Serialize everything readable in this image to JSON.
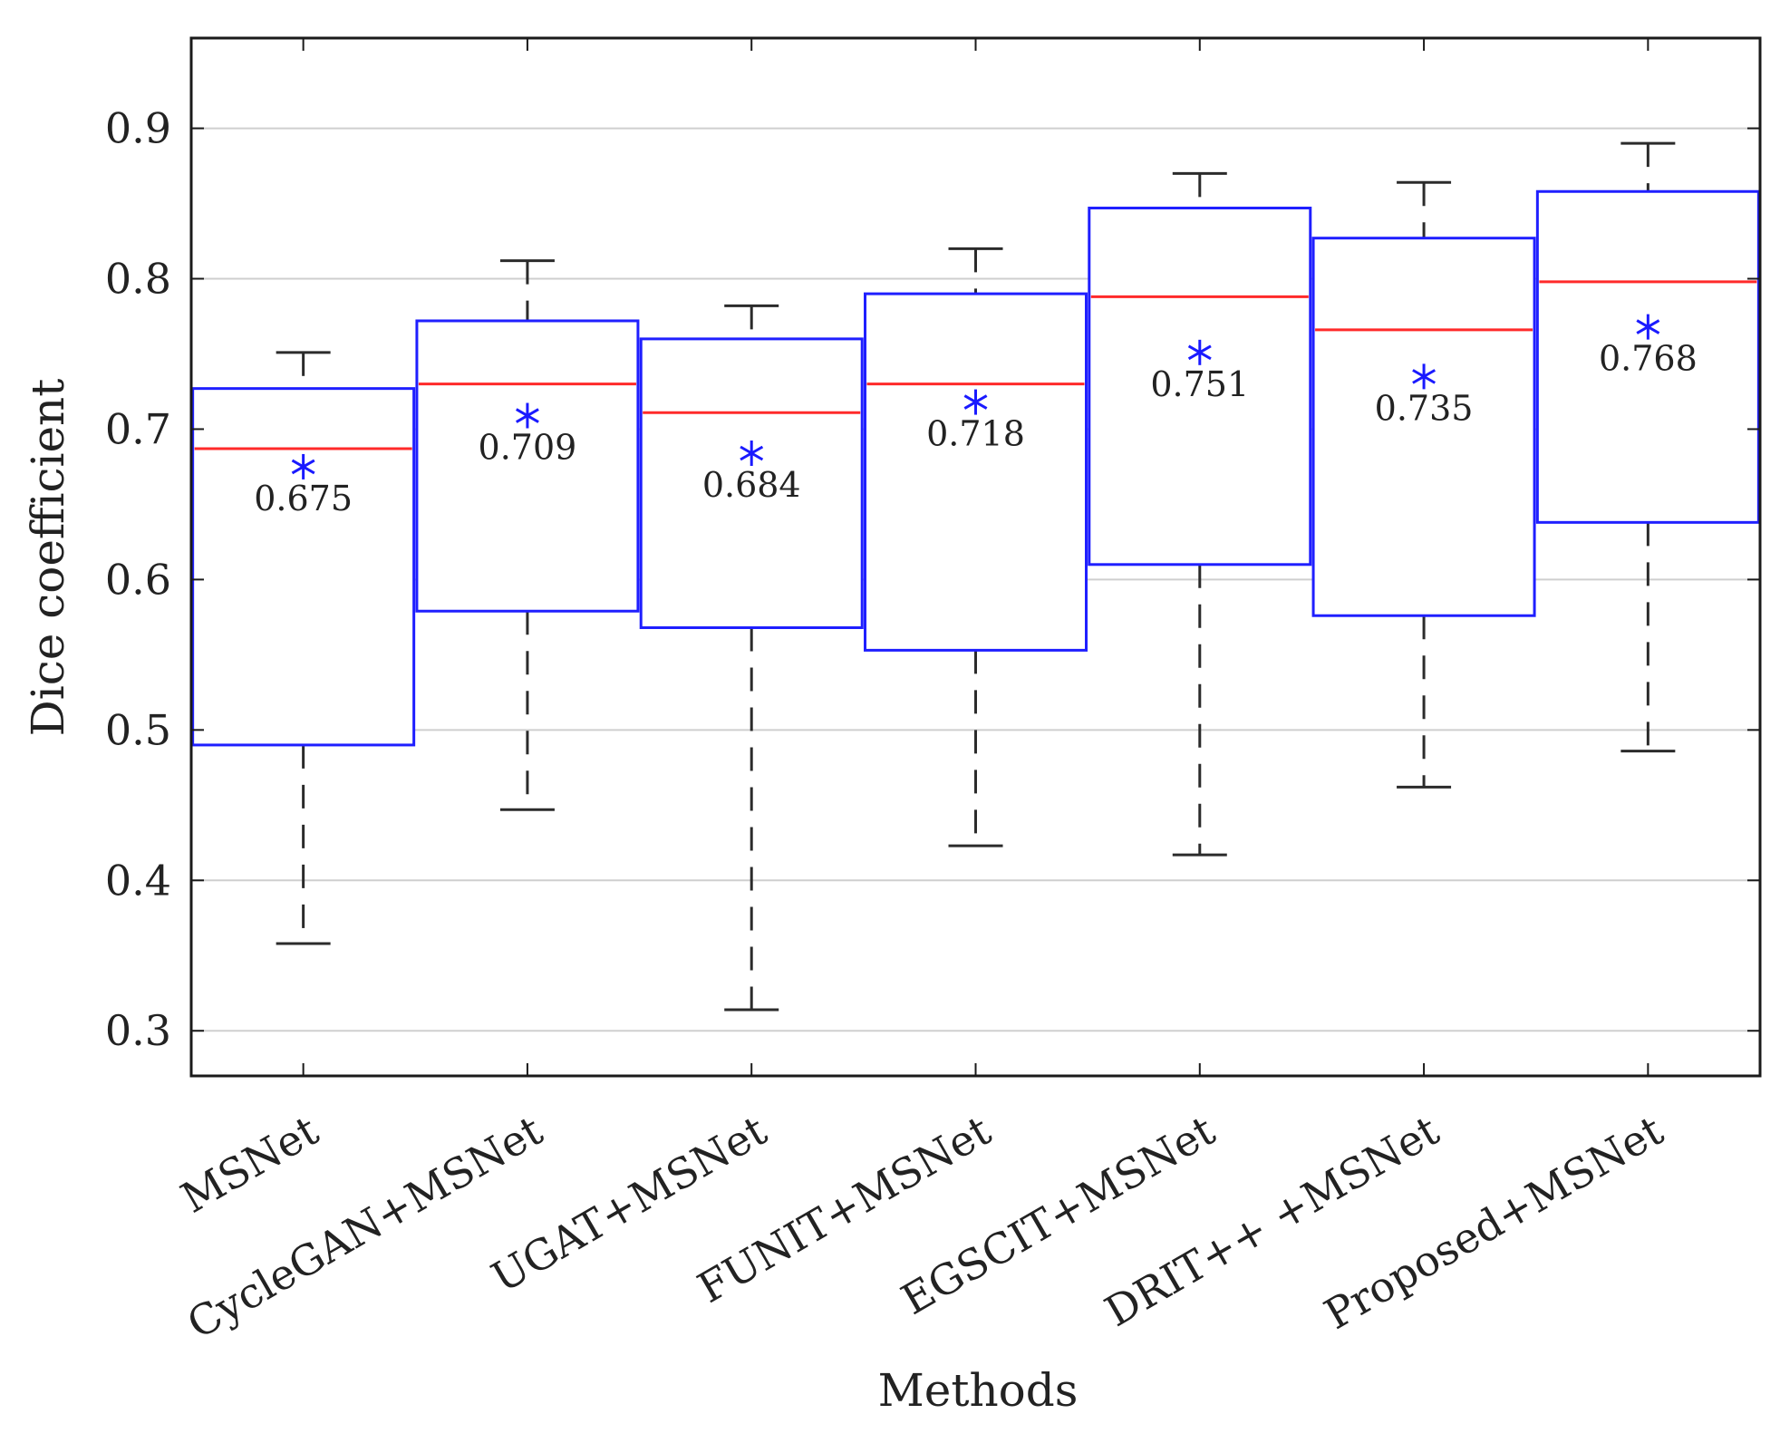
{
  "chart_data": {
    "type": "boxplot",
    "xlabel": "Methods",
    "ylabel": "Dice coefficient",
    "ylim": [
      0.27,
      0.96
    ],
    "yticks": [
      0.3,
      0.4,
      0.5,
      0.6,
      0.7,
      0.8,
      0.9
    ],
    "ytick_labels": [
      "0.3",
      "0.4",
      "0.5",
      "0.6",
      "0.7",
      "0.8",
      "0.9"
    ],
    "grid": true,
    "categories": [
      "MSNet",
      "CycleGAN+MSNet",
      "UGAT+MSNet",
      "FUNIT+MSNet",
      "EGSCIT+MSNet",
      "DRIT++ +MSNet",
      "Proposed+MSNet"
    ],
    "boxes": [
      {
        "category": "MSNet",
        "whisker_low": 0.358,
        "q1": 0.49,
        "median": 0.687,
        "q3": 0.727,
        "whisker_high": 0.751,
        "mean": 0.675,
        "mean_label": "0.675"
      },
      {
        "category": "CycleGAN+MSNet",
        "whisker_low": 0.447,
        "q1": 0.579,
        "median": 0.73,
        "q3": 0.772,
        "whisker_high": 0.812,
        "mean": 0.709,
        "mean_label": "0.709"
      },
      {
        "category": "UGAT+MSNet",
        "whisker_low": 0.314,
        "q1": 0.568,
        "median": 0.711,
        "q3": 0.76,
        "whisker_high": 0.782,
        "mean": 0.684,
        "mean_label": "0.684"
      },
      {
        "category": "FUNIT+MSNet",
        "whisker_low": 0.423,
        "q1": 0.553,
        "median": 0.73,
        "q3": 0.79,
        "whisker_high": 0.82,
        "mean": 0.718,
        "mean_label": "0.718"
      },
      {
        "category": "EGSCIT+MSNet",
        "whisker_low": 0.417,
        "q1": 0.61,
        "median": 0.788,
        "q3": 0.847,
        "whisker_high": 0.87,
        "mean": 0.751,
        "mean_label": "0.751"
      },
      {
        "category": "DRIT++ +MSNet",
        "whisker_low": 0.462,
        "q1": 0.576,
        "median": 0.766,
        "q3": 0.827,
        "whisker_high": 0.864,
        "mean": 0.735,
        "mean_label": "0.735"
      },
      {
        "category": "Proposed+MSNet",
        "whisker_low": 0.486,
        "q1": 0.638,
        "median": 0.798,
        "q3": 0.858,
        "whisker_high": 0.89,
        "mean": 0.768,
        "mean_label": "0.768"
      }
    ],
    "colors": {
      "box": "#1f1fff",
      "median": "#ff2a2a",
      "mean_marker": "#1a1aff",
      "whisker": "#2b2b2b",
      "grid": "#cfcfcf",
      "axis": "#1a1a1a"
    }
  }
}
